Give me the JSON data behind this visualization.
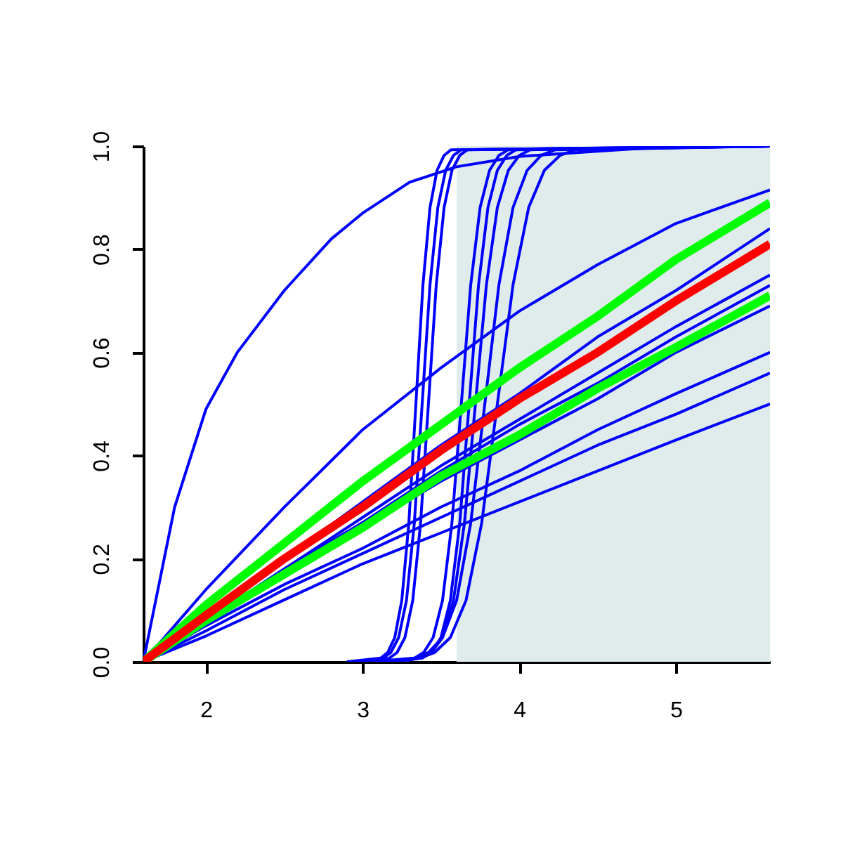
{
  "chart_data": {
    "type": "line",
    "xlim": [
      1.6,
      5.6
    ],
    "ylim": [
      0,
      1
    ],
    "xticks": [
      2,
      3,
      4,
      5
    ],
    "yticks": [
      {
        "value": 0,
        "label": "0.0"
      },
      {
        "value": 0.2,
        "label": "0.2"
      },
      {
        "value": 0.4,
        "label": "0.4"
      },
      {
        "value": 0.6,
        "label": "0.6"
      },
      {
        "value": 0.8,
        "label": "0.8"
      },
      {
        "value": 1,
        "label": "1.0"
      }
    ],
    "grid": false,
    "bands": [
      {
        "axis": "x",
        "from": 3.6,
        "to": 5.6,
        "color": "#e0ecec"
      }
    ],
    "x": [
      1.6,
      2,
      2.5,
      3,
      3.5,
      4,
      4.5,
      5,
      5.6
    ],
    "series": [
      {
        "color": "#0000ff",
        "x": [
          1.6,
          1.8,
          2,
          2.2,
          2.5,
          2.8,
          3,
          3.3,
          3.6,
          4,
          4.5,
          5,
          5.6
        ],
        "values": [
          0,
          0.3,
          0.49,
          0.6,
          0.72,
          0.82,
          0.87,
          0.93,
          0.96,
          0.98,
          0.99,
          1,
          1
        ]
      },
      {
        "color": "#0000ff",
        "x": [
          2.9,
          3.115,
          3.16,
          3.205,
          3.25,
          3.295,
          3.34,
          3.385,
          3.43,
          3.475,
          3.52,
          3.565,
          5.6
        ],
        "values": [
          0,
          0.007,
          0.018,
          0.047,
          0.119,
          0.269,
          0.5,
          0.731,
          0.881,
          0.953,
          0.982,
          0.993,
          1
        ]
      },
      {
        "color": "#0000ff",
        "x": [
          2.95,
          3.13,
          3.18,
          3.23,
          3.28,
          3.33,
          3.38,
          3.43,
          3.48,
          3.53,
          3.58,
          3.63,
          5.6
        ],
        "values": [
          0,
          0.007,
          0.018,
          0.047,
          0.119,
          0.269,
          0.5,
          0.731,
          0.881,
          0.953,
          0.982,
          0.993,
          1
        ]
      },
      {
        "color": "#0000ff",
        "x": [
          3,
          3.17,
          3.22,
          3.27,
          3.32,
          3.37,
          3.42,
          3.47,
          3.52,
          3.57,
          3.62,
          3.67,
          5.6
        ],
        "values": [
          0,
          0.007,
          0.018,
          0.047,
          0.119,
          0.269,
          0.5,
          0.731,
          0.881,
          0.953,
          0.982,
          0.993,
          1
        ]
      },
      {
        "color": "#0000ff",
        "x": [
          3.05,
          3.33,
          3.39,
          3.45,
          3.51,
          3.57,
          3.63,
          3.69,
          3.75,
          3.81,
          3.87,
          3.93,
          5.6
        ],
        "values": [
          0,
          0.007,
          0.018,
          0.047,
          0.119,
          0.269,
          0.5,
          0.731,
          0.881,
          0.953,
          0.982,
          0.993,
          1
        ]
      },
      {
        "color": "#0000ff",
        "x": [
          3.1,
          3.38,
          3.44,
          3.5,
          3.56,
          3.62,
          3.68,
          3.74,
          3.8,
          3.86,
          3.92,
          3.98,
          5.6
        ],
        "values": [
          0,
          0.007,
          0.018,
          0.047,
          0.119,
          0.269,
          0.5,
          0.731,
          0.881,
          0.953,
          0.982,
          0.993,
          1
        ]
      },
      {
        "color": "#0000ff",
        "x": [
          3.15,
          3.37,
          3.44,
          3.51,
          3.58,
          3.65,
          3.72,
          3.79,
          3.86,
          3.93,
          4,
          4.07,
          5.6
        ],
        "values": [
          0,
          0.007,
          0.018,
          0.047,
          0.119,
          0.269,
          0.5,
          0.731,
          0.881,
          0.953,
          0.982,
          0.993,
          1
        ]
      },
      {
        "color": "#0000ff",
        "x": [
          3.2,
          3.33,
          3.42,
          3.51,
          3.6,
          3.69,
          3.78,
          3.87,
          3.96,
          4.05,
          4.14,
          4.23,
          5.6
        ],
        "values": [
          0,
          0.007,
          0.018,
          0.047,
          0.119,
          0.269,
          0.5,
          0.731,
          0.881,
          0.953,
          0.982,
          0.993,
          1
        ]
      },
      {
        "color": "#0000ff",
        "x": [
          3.25,
          3.36,
          3.46,
          3.56,
          3.66,
          3.76,
          3.86,
          3.96,
          4.06,
          4.16,
          4.26,
          4.36,
          5.6
        ],
        "values": [
          0,
          0.007,
          0.018,
          0.047,
          0.119,
          0.269,
          0.5,
          0.731,
          0.881,
          0.953,
          0.982,
          0.993,
          1
        ]
      },
      {
        "color": "#0000ff",
        "values": [
          0,
          0.14,
          0.3,
          0.45,
          0.57,
          0.68,
          0.77,
          0.85,
          0.915
        ]
      },
      {
        "color": "#0000ff",
        "values": [
          0,
          0.09,
          0.2,
          0.31,
          0.42,
          0.52,
          0.63,
          0.72,
          0.84
        ]
      },
      {
        "color": "#0000ff",
        "values": [
          0,
          0.08,
          0.18,
          0.28,
          0.38,
          0.47,
          0.56,
          0.65,
          0.75
        ]
      },
      {
        "color": "#0000ff",
        "values": [
          0,
          0.08,
          0.18,
          0.27,
          0.37,
          0.46,
          0.54,
          0.63,
          0.73
        ]
      },
      {
        "color": "#0000ff",
        "values": [
          0,
          0.08,
          0.17,
          0.26,
          0.35,
          0.43,
          0.51,
          0.6,
          0.69
        ]
      },
      {
        "color": "#0000ff",
        "values": [
          0,
          0.07,
          0.15,
          0.22,
          0.3,
          0.37,
          0.45,
          0.52,
          0.6
        ]
      },
      {
        "color": "#0000ff",
        "values": [
          0,
          0.06,
          0.14,
          0.21,
          0.28,
          0.35,
          0.42,
          0.48,
          0.56
        ]
      },
      {
        "color": "#0000ff",
        "values": [
          0,
          0.05,
          0.12,
          0.19,
          0.25,
          0.31,
          0.37,
          0.43,
          0.5
        ]
      },
      {
        "color": "#00ff00",
        "values": [
          0,
          0.11,
          0.23,
          0.35,
          0.46,
          0.57,
          0.67,
          0.78,
          0.89
        ]
      },
      {
        "color": "#00ff00",
        "values": [
          0,
          0.08,
          0.17,
          0.26,
          0.36,
          0.44,
          0.53,
          0.61,
          0.71
        ]
      },
      {
        "color": "#ff0000",
        "values": [
          0,
          0.09,
          0.2,
          0.3,
          0.41,
          0.51,
          0.6,
          0.7,
          0.81
        ]
      }
    ]
  }
}
